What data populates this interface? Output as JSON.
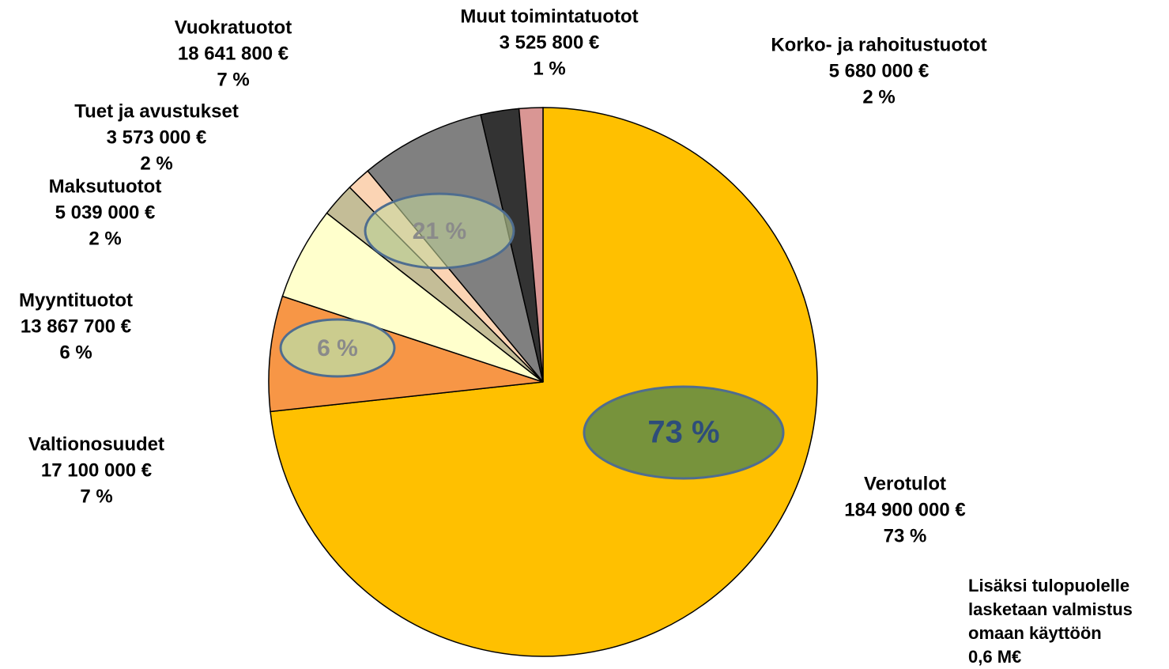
{
  "chart_data": {
    "type": "pie",
    "categories": [
      "Verotulot",
      "Valtionosuudet",
      "Myyntituotot",
      "Maksutuotot",
      "Tuet ja avustukset",
      "Vuokratuotot",
      "Korko- ja rahoitustuotot",
      "Muut toimintatuotot"
    ],
    "values": [
      184900000,
      17100000,
      13867700,
      5039000,
      3573000,
      18641800,
      5680000,
      3525800
    ],
    "value_labels": [
      "184 900 000 €",
      "17 100 000 €",
      "13 867 700 €",
      "5 039 000 €",
      "3 573 000 €",
      "18 641 800 €",
      "5 680 000 €",
      "3 525 800 €"
    ],
    "percents": [
      73,
      7,
      6,
      2,
      2,
      7,
      2,
      1
    ],
    "percent_labels": [
      "73 %",
      "7 %",
      "6 %",
      "2 %",
      "2 %",
      "7 %",
      "2 %",
      "1 %"
    ],
    "colors": [
      "#FFC000",
      "#F79646",
      "#FFFFCC",
      "#C4BD97",
      "#FBD4B4",
      "#808080",
      "#333333",
      "#D99694"
    ],
    "annotations": [
      "73 %",
      "6 %",
      "21 %"
    ],
    "footnote": [
      "Lisäksi tulopuolelle",
      "lasketaan valmistus",
      "omaan käyttöön",
      "0,6 M€"
    ]
  }
}
